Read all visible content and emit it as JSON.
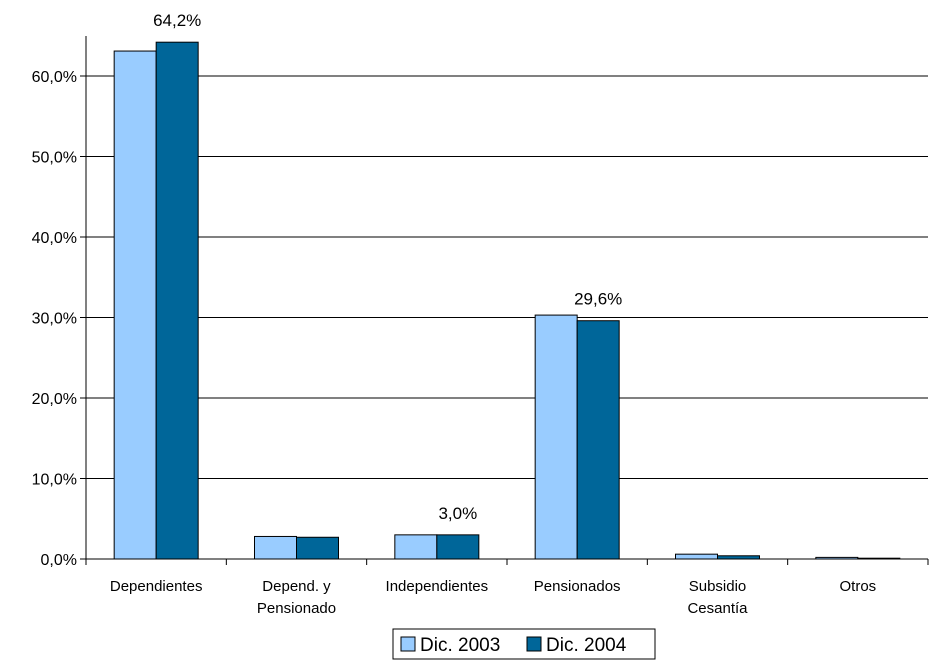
{
  "chart_data": {
    "type": "bar",
    "categories": [
      [
        "Dependientes"
      ],
      [
        "Depend. y",
        "Pensionado"
      ],
      [
        "Independientes"
      ],
      [
        "Pensionados"
      ],
      [
        "Subsidio",
        "Cesantía"
      ],
      [
        "Otros"
      ]
    ],
    "series": [
      {
        "name": "Dic. 2003",
        "color": "#99ccff",
        "values": [
          63.1,
          2.8,
          3.0,
          30.3,
          0.6,
          0.2
        ]
      },
      {
        "name": "Dic. 2004",
        "color": "#006699",
        "values": [
          64.2,
          2.7,
          3.0,
          29.6,
          0.4,
          0.1
        ]
      }
    ],
    "data_labels": [
      {
        "category": 0,
        "series": 1,
        "text": "64,2%"
      },
      {
        "category": 2,
        "series": 1,
        "text": "3,0%"
      },
      {
        "category": 3,
        "series": 1,
        "text": "29,6%"
      }
    ],
    "y_ticks": [
      "0,0%",
      "10,0%",
      "20,0%",
      "30,0%",
      "40,0%",
      "50,0%",
      "60,0%"
    ],
    "ylim": [
      0,
      60
    ],
    "grid": true,
    "legend_position": "bottom-center",
    "title": "",
    "xlabel": "",
    "ylabel": ""
  }
}
